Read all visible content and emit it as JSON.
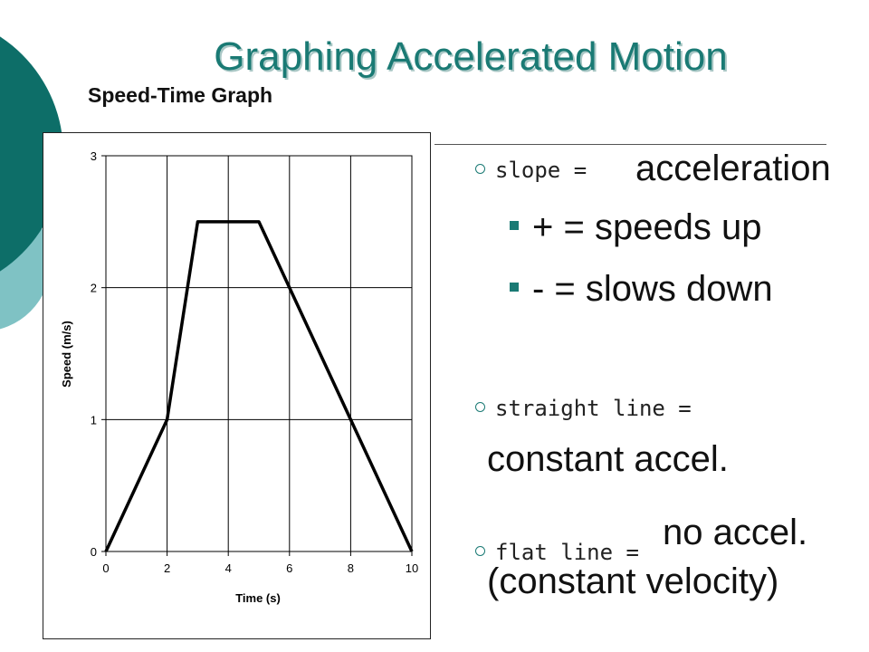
{
  "slide": {
    "title": "Graphing Accelerated Motion",
    "subtitle": "Speed-Time Graph",
    "accent_color": "#1a7a74",
    "deco_dark_color": "#0d6e68",
    "deco_light_color": "#7fc2c4"
  },
  "bullets": [
    {
      "label": "slope =",
      "answer": "acceleration"
    },
    {
      "label": "straight line =",
      "answer": "constant accel."
    },
    {
      "label": "flat line =",
      "answer": "no accel.",
      "answer2": "(constant velocity)"
    }
  ],
  "sub_bullets": [
    "+ = speeds up",
    "- = slows down"
  ],
  "chart_data": {
    "type": "line",
    "title": "",
    "xlabel": "Time (s)",
    "ylabel": "Speed (m/s)",
    "xlim": [
      0,
      10
    ],
    "ylim": [
      0,
      3
    ],
    "xticks": [
      0,
      2,
      4,
      6,
      8,
      10
    ],
    "yticks": [
      0,
      1,
      2,
      3
    ],
    "grid": true,
    "series": [
      {
        "x": [
          0,
          2,
          3,
          5,
          10
        ],
        "y": [
          0,
          1,
          2.5,
          2.5,
          0
        ]
      }
    ]
  }
}
